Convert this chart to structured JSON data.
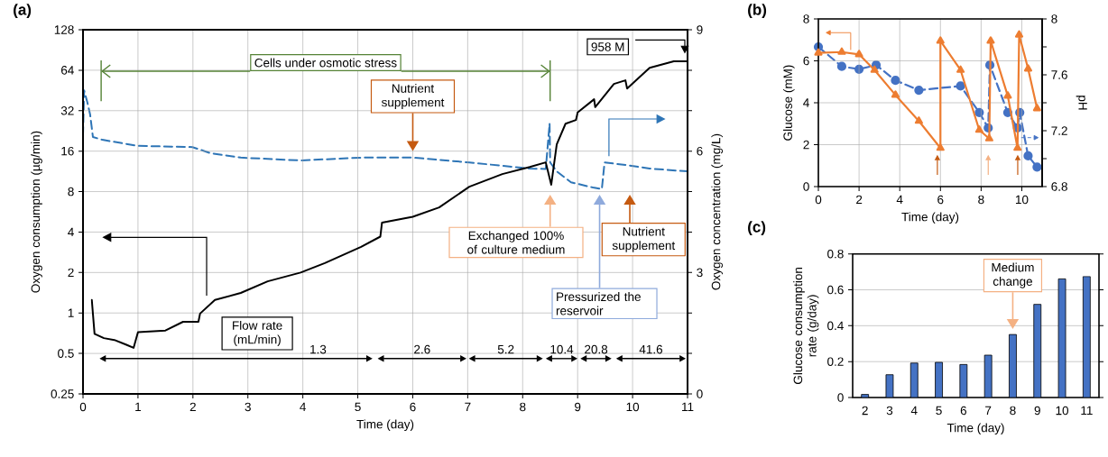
{
  "chart_data": [
    {
      "type": "line",
      "title": "(a)",
      "xlabel": "Time (day)",
      "ylabel": "Oxygen consumption (µg/min)",
      "y2label": "Oxygen concentration (mg/L)",
      "xlim": [
        0,
        11
      ],
      "xticks": [
        0,
        1,
        2,
        3,
        4,
        5,
        6,
        7,
        8,
        9,
        10,
        11
      ],
      "ylim": [
        0.25,
        128
      ],
      "yticks": [
        0.25,
        0.5,
        1,
        2,
        4,
        8,
        16,
        32,
        64,
        128
      ],
      "log": "y",
      "y2lim": [
        0,
        9
      ],
      "y2ticks": [
        0,
        {
          "value": 1,
          "label": null
        },
        {
          "value": 2,
          "label": null
        },
        3,
        {
          "value": 4,
          "label": null
        },
        {
          "value": 5,
          "label": null
        },
        6,
        {
          "value": 7,
          "label": null
        },
        {
          "value": 8,
          "label": null
        },
        9
      ],
      "grid": true,
      "series": [
        {
          "color": "#000000",
          "x": [
            0.16,
            0.21,
            0.38,
            0.57,
            0.79,
            0.92,
            1.0,
            1.5,
            1.82,
            2.1,
            2.13,
            2.4,
            2.87,
            3.36,
            3.96,
            4.4,
            5.06,
            5.41,
            5.44,
            6.0,
            6.48,
            7.03,
            7.63,
            8.13,
            8.42,
            8.52,
            8.62,
            8.78,
            8.97,
            9.0,
            9.3,
            9.32,
            9.66,
            9.87,
            9.9,
            10.31,
            10.75,
            11
          ],
          "values": [
            1.25,
            0.7,
            0.65,
            0.63,
            0.58,
            0.55,
            0.72,
            0.74,
            0.86,
            0.86,
            0.99,
            1.25,
            1.41,
            1.72,
            2.0,
            2.35,
            3.1,
            3.7,
            4.7,
            5.2,
            6.1,
            8.7,
            10.8,
            12.2,
            13.2,
            9.0,
            18,
            25.6,
            27.3,
            31,
            38.9,
            34,
            50.6,
            53.8,
            46.8,
            66.7,
            74.5,
            74.5
          ]
        },
        {
          "color": "#2e75b6",
          "axis": "y2",
          "line_style": "dashed",
          "x": [
            0,
            0.02,
            0.08,
            0.13,
            0.18,
            0.35,
            1.0,
            1.99,
            2.32,
            2.87,
            3.96,
            5.06,
            6.0,
            7.03,
            8.13,
            8.42,
            8.49,
            8.5,
            8.62,
            8.88,
            9.28,
            9.44,
            9.49,
            9.87,
            10.31,
            11
          ],
          "values": [
            6.4,
            7.5,
            7.2,
            6.9,
            6.35,
            6.28,
            6.13,
            6.1,
            5.95,
            5.84,
            5.77,
            5.84,
            5.84,
            5.72,
            5.57,
            5.56,
            6.68,
            5.72,
            5.5,
            5.23,
            5.1,
            5.06,
            5.72,
            5.66,
            5.57,
            5.5
          ]
        }
      ],
      "annotations": [
        "Cells under osmotic stress",
        "Flow rate (mL/min)",
        "1.3",
        "2.6",
        "5.2",
        "10.4",
        "20.8",
        "41.6",
        "Nutrient supplement",
        "Exchanged 100% of culture medium",
        "Pressurized the reservoir",
        "Nutrient supplement",
        "958 M"
      ]
    },
    {
      "type": "line",
      "title": "(b)",
      "xlabel": "Time (day)",
      "ylabel": "Glucose (mM)",
      "y2label": "pH",
      "xlim": [
        0,
        11
      ],
      "xticks": [
        0,
        2,
        4,
        6,
        8,
        10
      ],
      "ylim": [
        0,
        8
      ],
      "yticks": [
        0,
        2,
        4,
        6,
        8
      ],
      "y2lim": [
        6.8,
        8
      ],
      "y2ticks": [
        6.8,
        {
          "value": 7.0,
          "label": null
        },
        7.2,
        {
          "value": 7.4,
          "label": null
        },
        7.6,
        {
          "value": 7.8,
          "label": null
        },
        8
      ],
      "grid": true,
      "series": [
        {
          "color": "#ed7d31",
          "marker": "triangle",
          "x": [
            0,
            1.15,
            2.0,
            2.76,
            3.79,
            4.94,
            6.0,
            6.0,
            6.99,
            7.91,
            8.4,
            8.47,
            9.31,
            9.79,
            9.87,
            10.31,
            10.75
          ],
          "values": [
            6.38,
            6.42,
            6.31,
            5.56,
            4.37,
            3.13,
            1.84,
            6.95,
            5.56,
            2.7,
            2.29,
            6.95,
            4.33,
            1.84,
            7.24,
            5.62,
            3.73
          ]
        },
        {
          "color": "#4472c4",
          "marker": "circle",
          "line_style": "dashed",
          "axis": "y2",
          "x": [
            0,
            1.15,
            2.0,
            2.84,
            3.79,
            4.94,
            6.99,
            7.91,
            8.35,
            8.43,
            9.31,
            9.79,
            9.9,
            10.31,
            10.75
          ],
          "values": [
            7.8,
            7.66,
            7.64,
            7.67,
            7.56,
            7.49,
            7.52,
            7.33,
            7.22,
            7.67,
            7.33,
            7.22,
            7.33,
            7.02,
            6.94
          ]
        }
      ]
    },
    {
      "type": "bar",
      "title": "(c)",
      "xlabel": "Time (day)",
      "ylabel": "Glucose consumption rate (g/day)",
      "categories": [
        "2",
        "3",
        "4",
        "5",
        "6",
        "7",
        "8",
        "9",
        "10",
        "11"
      ],
      "values": [
        0.017,
        0.127,
        0.192,
        0.196,
        0.184,
        0.236,
        0.351,
        0.519,
        0.661,
        0.674
      ],
      "color": "#4472c4",
      "ylim": [
        0,
        0.8
      ],
      "yticks": [
        0,
        0.2,
        0.4,
        0.6,
        0.8
      ],
      "grid": "y",
      "annotations": [
        "Medium change"
      ]
    }
  ]
}
